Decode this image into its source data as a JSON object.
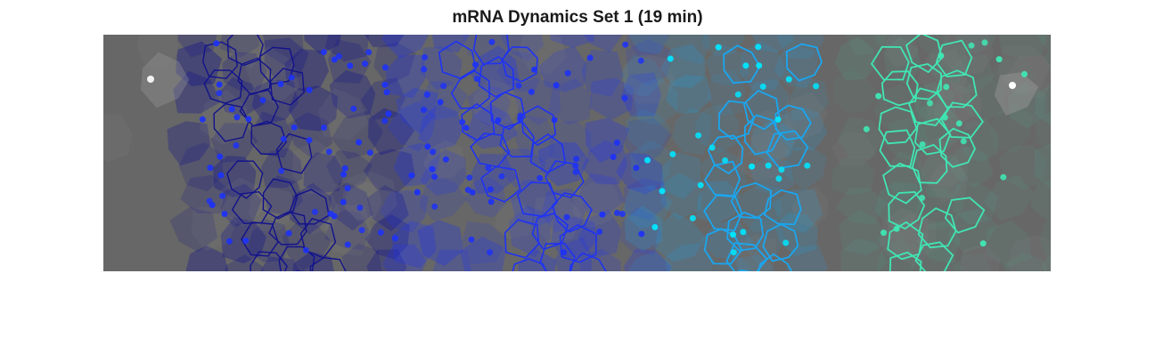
{
  "figure": {
    "title": "mRNA Dynamics Set 1 (19 min)"
  },
  "colors": {
    "background": "#676767",
    "band_dark_blue": "#12128c",
    "band_blue": "#1f33f2",
    "band_cyan": "#1aa6f0",
    "band_aqua": "#40e6b3",
    "spot_highlight": "#ffffff"
  }
}
